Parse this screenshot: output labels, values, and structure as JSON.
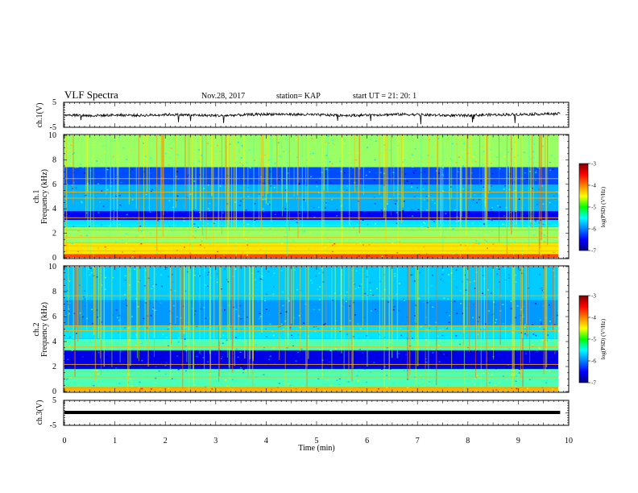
{
  "header": {
    "title": "VLF Spectra",
    "date": "Nov.28, 2017",
    "station": "station= KAP",
    "start_ut": "start  UT =   21: 20: 1"
  },
  "colors": {
    "trace": "#000000",
    "spectrogram_background": "#0a1fb0"
  },
  "chart_data": [
    {
      "type": "line",
      "panel": "ch1-waveform",
      "ylabel": "ch.1(V)",
      "ylim": [
        -5,
        5
      ],
      "y_ticks": [
        "5",
        "-5"
      ],
      "xlim": [
        0,
        10
      ],
      "x_end": 9.83,
      "values_approx": [
        0.2,
        -0.2,
        0.1,
        -0.1,
        0.3,
        0.0,
        -0.2,
        0.2,
        0.5,
        0.3,
        0.1,
        -0.1,
        0.2,
        0.4,
        0.1,
        -0.2,
        0.1,
        0.3,
        0.5,
        0.6
      ]
    },
    {
      "type": "heatmap",
      "panel": "ch1-spectrogram",
      "ylabel": "ch.1\nFrequency (kHz)",
      "ylim": [
        0,
        10
      ],
      "y_ticks": [
        "0",
        "2",
        "4",
        "6",
        "8",
        "10"
      ],
      "xlim": [
        0,
        10
      ],
      "x_end": 9.83,
      "colorbar": {
        "label": "log(PSD) (V²/Hz)",
        "range": [
          -7,
          -3
        ],
        "ticks": [
          "-3",
          "-4",
          "-5",
          "-6",
          "-7"
        ]
      },
      "bands": [
        {
          "from": 0,
          "to": 0.3,
          "level": -3.8
        },
        {
          "from": 0.3,
          "to": 1.2,
          "level": -4.4
        },
        {
          "from": 1.2,
          "to": 2.5,
          "level": -4.9
        },
        {
          "from": 2.5,
          "to": 3.1,
          "level": -5.6
        },
        {
          "from": 3.1,
          "to": 3.8,
          "level": -6.5
        },
        {
          "from": 3.8,
          "to": 6.0,
          "level": -5.8
        },
        {
          "from": 6.0,
          "to": 7.4,
          "level": -6.2
        },
        {
          "from": 7.4,
          "to": 10,
          "level": -4.9
        }
      ],
      "lines_khz": [
        0.6,
        1.0,
        1.7,
        2.3,
        2.7,
        3.3,
        4.9,
        5.4,
        6.5
      ]
    },
    {
      "type": "heatmap",
      "panel": "ch2-spectrogram",
      "ylabel": "ch.2\nFrequency (kHz)",
      "ylim": [
        0,
        10
      ],
      "y_ticks": [
        "0",
        "2",
        "4",
        "6",
        "8",
        "10"
      ],
      "xlim": [
        0,
        10
      ],
      "x_end": 9.83,
      "colorbar": {
        "label": "log(PSD) (V²/Hz)",
        "range": [
          -7,
          -3
        ],
        "ticks": [
          "-3",
          "-4",
          "-5",
          "-6",
          "-7"
        ]
      },
      "bands": [
        {
          "from": 0,
          "to": 0.3,
          "level": -4.2
        },
        {
          "from": 0.3,
          "to": 1.8,
          "level": -5.2
        },
        {
          "from": 1.8,
          "to": 3.3,
          "level": -6.6
        },
        {
          "from": 3.3,
          "to": 4.2,
          "level": -5.2
        },
        {
          "from": 4.2,
          "to": 5.3,
          "level": -5.6
        },
        {
          "from": 5.3,
          "to": 7.3,
          "level": -5.9
        },
        {
          "from": 7.3,
          "to": 10,
          "level": -5.7
        }
      ],
      "lines_khz": [
        0.4,
        1.2,
        1.6,
        2.2,
        3.6,
        4.9,
        5.3,
        7.7
      ]
    },
    {
      "type": "line",
      "panel": "ch3-waveform",
      "ylabel": "ch.3(V)",
      "ylim": [
        -5,
        5
      ],
      "y_ticks": [
        "5",
        "-5"
      ],
      "xlim": [
        0,
        10
      ],
      "x_end": 9.83,
      "values_approx": [
        0,
        0
      ]
    }
  ],
  "x_axis": {
    "label": "Time  (min)",
    "ticks": [
      "0",
      "1",
      "2",
      "3",
      "4",
      "5",
      "6",
      "7",
      "8",
      "9",
      "10"
    ]
  }
}
